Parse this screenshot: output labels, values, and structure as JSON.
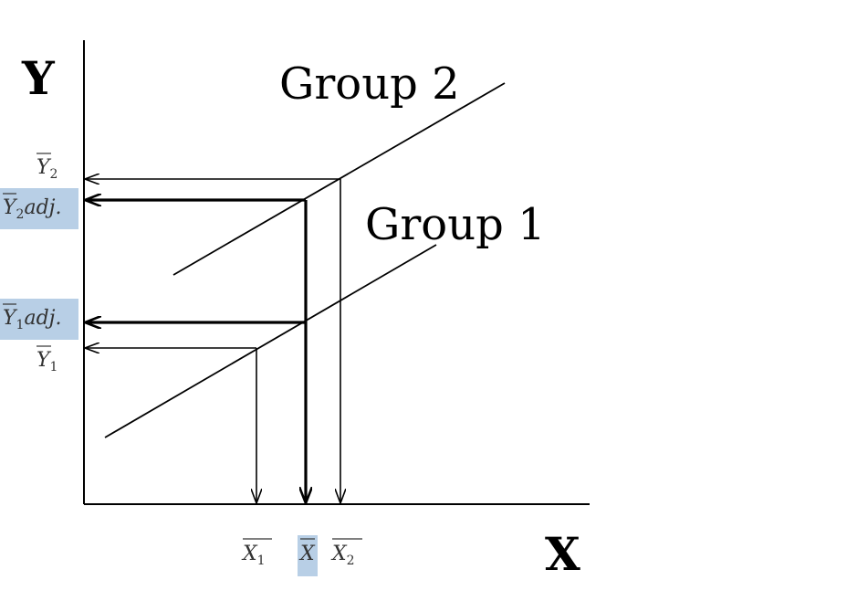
{
  "axes": {
    "y_title": "Y",
    "x_title": "X"
  },
  "lines": {
    "group2_label": "Group 2",
    "group1_label": "Group 1"
  },
  "y_ticks": {
    "y2_mean": {
      "symbol": "Y",
      "sub": "2",
      "suffix": ""
    },
    "y2_adj": {
      "symbol": "Y",
      "sub": "2",
      "suffix": "adj."
    },
    "y1_adj": {
      "symbol": "Y",
      "sub": "1",
      "suffix": "adj."
    },
    "y1_mean": {
      "symbol": "Y",
      "sub": "1",
      "suffix": ""
    }
  },
  "x_ticks": {
    "x1_mean": {
      "symbol": "X",
      "sub": "1"
    },
    "grand_mean": {
      "symbol": "X",
      "sub": ""
    },
    "x2_mean": {
      "symbol": "X",
      "sub": "2"
    }
  },
  "colors": {
    "highlight": "#b8cfe6",
    "line": "#000000"
  }
}
